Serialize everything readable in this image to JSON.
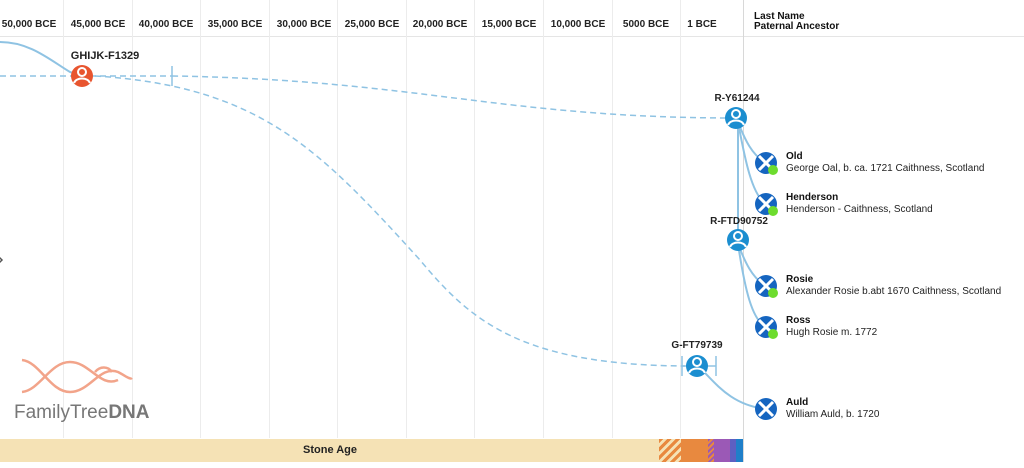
{
  "timeline": {
    "ticks": [
      "50,000 BCE",
      "45,000 BCE",
      "40,000 BCE",
      "35,000 BCE",
      "30,000 BCE",
      "25,000 BCE",
      "20,000 BCE",
      "15,000 BCE",
      "10,000 BCE",
      "5000 BCE",
      "1 BCE"
    ]
  },
  "sidebar": {
    "heading_line1": "Last Name",
    "heading_line2": "Paternal Ancestor"
  },
  "nodes": {
    "root": "GHIJK-F1329",
    "r_y61244": "R-Y61244",
    "r_ftd90752": "R-FTD90752",
    "g_ft79739": "G-FT79739"
  },
  "ancestors": [
    {
      "surname": "Old",
      "description": "George Oal, b. ca. 1721 Caithness, Scotland"
    },
    {
      "surname": "Henderson",
      "description": "Henderson - Caithness, Scotland"
    },
    {
      "surname": "Rosie",
      "description": "Alexander Rosie b.abt 1670 Caithness, Scotland"
    },
    {
      "surname": "Ross",
      "description": "Hugh Rosie m. 1772"
    },
    {
      "surname": "Auld",
      "description": "William Auld, b. 1720"
    }
  ],
  "ages": {
    "stone_age": "Stone Age"
  },
  "logo": {
    "brand_light": "FamilyTree",
    "brand_bold": "DNA"
  },
  "colors": {
    "root_node": "#e8552f",
    "branch_node": "#1b8ed0",
    "line": "#8fc3e3",
    "flag_blue": "#1565c0",
    "match_dot": "#6ddc2e",
    "stone_age": "#f5e2b5",
    "bronze_age": "#e8893f",
    "iron_age": "#9b59b6",
    "modern": "#1f7fc9"
  }
}
